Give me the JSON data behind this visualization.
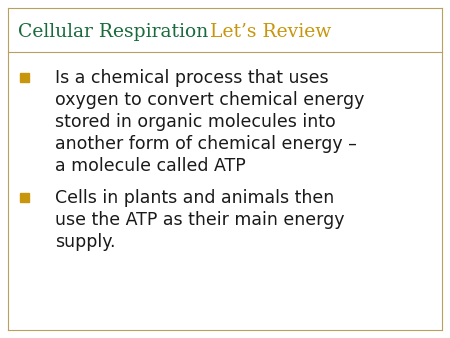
{
  "title1": "Cellular Respiration",
  "title2": "Let’s Review",
  "title1_color": "#1a6b3c",
  "title2_color": "#c8960c",
  "border_color": "#b8a060",
  "background_color": "#ffffff",
  "bullet_color": "#c8960c",
  "text_color": "#1a1a1a",
  "title_fontsize": 13.5,
  "body_fontsize": 12.5,
  "bullet1_lines": [
    "Is a chemical process that uses",
    "oxygen to convert chemical energy",
    "stored in organic molecules into",
    "another form of chemical energy –",
    "a molecule called ATP"
  ],
  "bullet2_lines": [
    "Cells in plants and animals then",
    "use the ATP as their main energy",
    "supply."
  ]
}
